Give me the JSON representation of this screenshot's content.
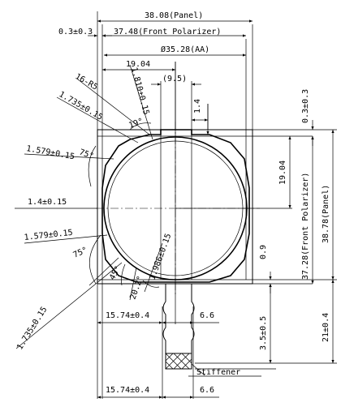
{
  "dims": {
    "panel_width": "38.08(Panel)",
    "fp_offset": "0.3±0.3",
    "fp_width": "37.48(Front Polarizer)",
    "aa_diameter": "Ø35.28(AA)",
    "center_x": "19.04",
    "center_gap": "(9.5)",
    "edge_1_4_top": "1.4",
    "radius": "16-R5",
    "d_1_735_top": "1.735±0.15",
    "d_1_810": "1.810±0.15",
    "angle_19": "19°",
    "angle_75_top": "75°",
    "d_1_579_top": "1.579±0.15",
    "d_1_4_left": "1.4±0.15",
    "d_1_579_bot": "1.579±0.15",
    "angle_75_bot": "75°",
    "angle_45_bot": "45°",
    "d_1_735_bot": "1.735±0.15",
    "angle_20_2": "20.2°",
    "d_1_986": "1.986±0.15",
    "fpc_left_1": "15.74±0.4",
    "fpc_width_1": "6.6",
    "fpc_left_2": "15.74±0.4",
    "fpc_width_2": "6.6",
    "top_gap": "0.3±0.3",
    "center_y": "19.04",
    "fp_height": "37.28(Front Polarizer)",
    "panel_height": "38.78(Panel)",
    "bottom_gap": "0.9",
    "fpc_3_5": "3.5±0.5",
    "fpc_21": "21±0.4",
    "stiffener": "Stiffener"
  }
}
